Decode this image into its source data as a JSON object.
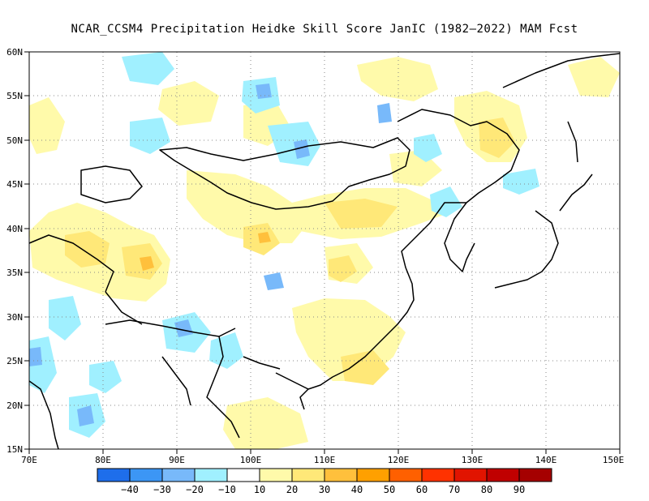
{
  "title": "NCAR_CCSM4  Precipitation Heidke Skill Score JanIC (1982–2022) MAM Fcst",
  "map": {
    "lon_range": [
      70,
      150
    ],
    "lat_range": [
      15,
      60
    ],
    "lat_ticks": [
      "15N",
      "20N",
      "25N",
      "30N",
      "35N",
      "40N",
      "45N",
      "50N",
      "55N",
      "60N"
    ],
    "lon_ticks": [
      "70E",
      "80E",
      "90E",
      "100E",
      "110E",
      "120E",
      "130E",
      "140E",
      "150E"
    ],
    "grid": "dotted",
    "ocean_color": "#ffffff",
    "coast_color": "#000000"
  },
  "colorbar": {
    "colors": [
      "#1e6eeb",
      "#3c96f5",
      "#78b9fa",
      "#a0f0ff",
      "#ffffff",
      "#fffaaa",
      "#ffe878",
      "#ffc03c",
      "#ffa000",
      "#ff6000",
      "#ff3200",
      "#e11400",
      "#c00000",
      "#a50000"
    ],
    "labels": [
      "−40",
      "−30",
      "−20",
      "−10",
      "10",
      "20",
      "30",
      "40",
      "50",
      "60",
      "70",
      "80",
      "90"
    ]
  },
  "colors": {
    "light_blue": "#a0f0ff",
    "mid_blue": "#78b9fa",
    "dark_blue": "#3c96f5",
    "light_yellow": "#fffaaa",
    "yellow": "#ffe878",
    "orange": "#ffc03c"
  }
}
